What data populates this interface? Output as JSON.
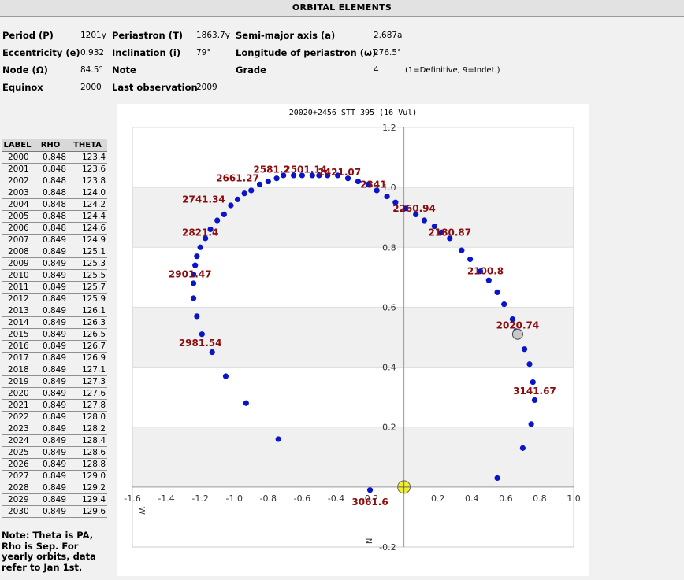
{
  "header": {
    "title": "ORBITAL ELEMENTS"
  },
  "elements": {
    "period_label": "Period (P)",
    "period_value": "1201y",
    "periastron_label": "Periastron (T)",
    "periastron_value": "1863.7y",
    "semimajor_label": "Semi-major axis (a)",
    "semimajor_value": "2.687a",
    "eccentricity_label": "Eccentricity (e)",
    "eccentricity_value": "0.932",
    "inclination_label": "Inclination (i)",
    "inclination_value": "79°",
    "longitude_label": "Longitude of periastron (ω)",
    "longitude_value": "276.5°",
    "node_label": "Node (Ω)",
    "node_value": "84.5°",
    "note_label": "Note",
    "grade_label": "Grade",
    "grade_value": "4",
    "grade_note": "(1=Definitive, 9=Indet.)",
    "equinox_label": "Equinox",
    "equinox_value": "2000",
    "lastobs_label": "Last observation",
    "lastobs_value": "2009"
  },
  "table": {
    "headers": [
      "LABEL",
      "RHO",
      "THETA"
    ],
    "rows": [
      [
        "2000",
        "0.848",
        "123.4"
      ],
      [
        "2001",
        "0.848",
        "123.6"
      ],
      [
        "2002",
        "0.848",
        "123.8"
      ],
      [
        "2003",
        "0.848",
        "124.0"
      ],
      [
        "2004",
        "0.848",
        "124.2"
      ],
      [
        "2005",
        "0.848",
        "124.4"
      ],
      [
        "2006",
        "0.848",
        "124.6"
      ],
      [
        "2007",
        "0.849",
        "124.9"
      ],
      [
        "2008",
        "0.849",
        "125.1"
      ],
      [
        "2009",
        "0.849",
        "125.3"
      ],
      [
        "2010",
        "0.849",
        "125.5"
      ],
      [
        "2011",
        "0.849",
        "125.7"
      ],
      [
        "2012",
        "0.849",
        "125.9"
      ],
      [
        "2013",
        "0.849",
        "126.1"
      ],
      [
        "2014",
        "0.849",
        "126.3"
      ],
      [
        "2015",
        "0.849",
        "126.5"
      ],
      [
        "2016",
        "0.849",
        "126.7"
      ],
      [
        "2017",
        "0.849",
        "126.9"
      ],
      [
        "2018",
        "0.849",
        "127.1"
      ],
      [
        "2019",
        "0.849",
        "127.3"
      ],
      [
        "2020",
        "0.849",
        "127.6"
      ],
      [
        "2021",
        "0.849",
        "127.8"
      ],
      [
        "2022",
        "0.849",
        "128.0"
      ],
      [
        "2023",
        "0.849",
        "128.2"
      ],
      [
        "2024",
        "0.849",
        "128.4"
      ],
      [
        "2025",
        "0.849",
        "128.6"
      ],
      [
        "2026",
        "0.849",
        "128.8"
      ],
      [
        "2027",
        "0.849",
        "129.0"
      ],
      [
        "2028",
        "0.849",
        "129.2"
      ],
      [
        "2029",
        "0.849",
        "129.4"
      ],
      [
        "2030",
        "0.849",
        "129.6"
      ]
    ]
  },
  "note": "Note: Theta is PA, Rho is Sep. For yearly orbits, data refer to Jan 1st.",
  "chart_data": {
    "type": "scatter",
    "title": "20020+2456 STT 395 (16 Vul)",
    "xlim": [
      -1.6,
      1.0
    ],
    "ylim": [
      -0.2,
      1.2
    ],
    "x_ticks": [
      "-1.6",
      "-1.4",
      "-1.2",
      "-1.0",
      "-0.8",
      "-0.6",
      "-0.4",
      "-0.2",
      "0.2",
      "0.4",
      "0.6",
      "0.8",
      "1.0"
    ],
    "y_ticks": [
      "1.2",
      "1.0",
      "0.8",
      "0.6",
      "0.4",
      "0.2",
      "-0.2"
    ],
    "x_dir_label": "W",
    "y_dir_label": "N",
    "grid_bands": true,
    "colors": {
      "point": "#0a14c8",
      "label": "#8b0d0d",
      "primary": "#f2f02a",
      "current": "#c8c8c8"
    },
    "primary": {
      "x": 0.0,
      "y": 0.0
    },
    "current_position": {
      "x": 0.67,
      "y": 0.51
    },
    "orbit_points": [
      [
        0.55,
        0.03
      ],
      [
        0.7,
        0.13
      ],
      [
        0.75,
        0.21
      ],
      [
        0.77,
        0.29
      ],
      [
        0.76,
        0.35
      ],
      [
        0.74,
        0.41
      ],
      [
        0.71,
        0.46
      ],
      [
        0.66,
        0.52
      ],
      [
        0.64,
        0.56
      ],
      [
        0.59,
        0.61
      ],
      [
        0.55,
        0.65
      ],
      [
        0.5,
        0.69
      ],
      [
        0.45,
        0.72
      ],
      [
        0.39,
        0.76
      ],
      [
        0.34,
        0.79
      ],
      [
        0.27,
        0.83
      ],
      [
        0.22,
        0.85
      ],
      [
        0.18,
        0.87
      ],
      [
        0.12,
        0.89
      ],
      [
        0.07,
        0.91
      ],
      [
        0.01,
        0.93
      ],
      [
        -0.05,
        0.95
      ],
      [
        -0.1,
        0.97
      ],
      [
        -0.16,
        0.99
      ],
      [
        -0.21,
        1.01
      ],
      [
        -0.27,
        1.02
      ],
      [
        -0.33,
        1.03
      ],
      [
        -0.39,
        1.04
      ],
      [
        -0.45,
        1.04
      ],
      [
        -0.5,
        1.04
      ],
      [
        -0.54,
        1.04
      ],
      [
        -0.6,
        1.04
      ],
      [
        -0.65,
        1.04
      ],
      [
        -0.71,
        1.04
      ],
      [
        -0.75,
        1.03
      ],
      [
        -0.8,
        1.02
      ],
      [
        -0.85,
        1.01
      ],
      [
        -0.9,
        0.99
      ],
      [
        -0.94,
        0.98
      ],
      [
        -0.98,
        0.96
      ],
      [
        -1.02,
        0.94
      ],
      [
        -1.06,
        0.91
      ],
      [
        -1.1,
        0.89
      ],
      [
        -1.14,
        0.86
      ],
      [
        -1.17,
        0.83
      ],
      [
        -1.2,
        0.8
      ],
      [
        -1.22,
        0.77
      ],
      [
        -1.23,
        0.74
      ],
      [
        -1.24,
        0.71
      ],
      [
        -1.24,
        0.68
      ],
      [
        -1.24,
        0.63
      ],
      [
        -1.22,
        0.57
      ],
      [
        -1.19,
        0.51
      ],
      [
        -1.13,
        0.45
      ],
      [
        -1.05,
        0.37
      ],
      [
        -0.93,
        0.28
      ],
      [
        -0.74,
        0.16
      ],
      [
        -0.2,
        -0.01
      ]
    ],
    "annotations": [
      {
        "text": "3061.6",
        "x": -0.2,
        "y": -0.05
      },
      {
        "text": "2981.54",
        "x": -1.2,
        "y": 0.48
      },
      {
        "text": "2901.47",
        "x": -1.26,
        "y": 0.71
      },
      {
        "text": "2821.4",
        "x": -1.2,
        "y": 0.85
      },
      {
        "text": "2741.34",
        "x": -1.18,
        "y": 0.96
      },
      {
        "text": "2661.27",
        "x": -0.98,
        "y": 1.03
      },
      {
        "text": "2581.2",
        "x": -0.78,
        "y": 1.06
      },
      {
        "text": "2501.14",
        "x": -0.58,
        "y": 1.06
      },
      {
        "text": "2421.07",
        "x": -0.38,
        "y": 1.05
      },
      {
        "text": "2341",
        "x": -0.18,
        "y": 1.01
      },
      {
        "text": "2260.94",
        "x": 0.06,
        "y": 0.93
      },
      {
        "text": "2180.87",
        "x": 0.27,
        "y": 0.85
      },
      {
        "text": "2100.8",
        "x": 0.48,
        "y": 0.72
      },
      {
        "text": "2020.74",
        "x": 0.67,
        "y": 0.54
      },
      {
        "text": "3141.67",
        "x": 0.77,
        "y": 0.32
      }
    ]
  }
}
